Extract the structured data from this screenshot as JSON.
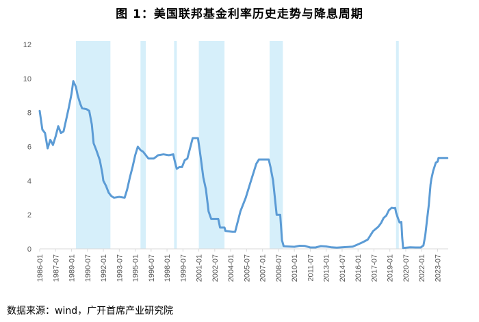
{
  "title": "图 1：美国联邦基金利率历史走势与降息周期",
  "source": "数据来源：wind，广开首席产业研究院",
  "colors": {
    "line": "#5b9bd5",
    "shade": "#d6effa",
    "axis": "#d9d9d9",
    "text": "#595959"
  },
  "chart_data": {
    "type": "line",
    "title": "图 1：美国联邦基金利率历史走势与降息周期",
    "xlabel": "",
    "ylabel": "",
    "ylim": [
      0,
      12
    ],
    "yticks": [
      0,
      2,
      4,
      6,
      8,
      10,
      12
    ],
    "xticks": [
      "1986-01",
      "1987-07",
      "1989-01",
      "1990-07",
      "1992-01",
      "1993-07",
      "1995-01",
      "1996-07",
      "1998-01",
      "1999-07",
      "2001-01",
      "2002-07",
      "2004-01",
      "2005-07",
      "2007-01",
      "2008-07",
      "2010-01",
      "2011-07",
      "2013-01",
      "2014-07",
      "2016-01",
      "2017-07",
      "2019-01",
      "2020-07",
      "2022-01",
      "2023-07"
    ],
    "grid": false,
    "legend": "none",
    "shaded_periods": [
      [
        "1989-06",
        "1992-09"
      ],
      [
        "1995-07",
        "1996-01"
      ],
      [
        "1998-09",
        "1998-11"
      ],
      [
        "2001-01",
        "2003-06"
      ],
      [
        "2007-09",
        "2008-12"
      ],
      [
        "2019-08",
        "2019-10"
      ]
    ],
    "series": [
      {
        "points": [
          [
            "1986-01",
            8.1
          ],
          [
            "1986-04",
            7.0
          ],
          [
            "1986-07",
            6.8
          ],
          [
            "1986-10",
            5.9
          ],
          [
            "1987-01",
            6.4
          ],
          [
            "1987-04",
            6.1
          ],
          [
            "1987-07",
            6.6
          ],
          [
            "1987-10",
            7.2
          ],
          [
            "1988-01",
            6.8
          ],
          [
            "1988-04",
            6.9
          ],
          [
            "1988-07",
            7.6
          ],
          [
            "1988-10",
            8.3
          ],
          [
            "1989-01",
            9.1
          ],
          [
            "1989-03",
            9.85
          ],
          [
            "1989-06",
            9.5
          ],
          [
            "1989-08",
            9.0
          ],
          [
            "1989-11",
            8.5
          ],
          [
            "1990-01",
            8.25
          ],
          [
            "1990-06",
            8.2
          ],
          [
            "1990-09",
            8.1
          ],
          [
            "1990-12",
            7.3
          ],
          [
            "1991-02",
            6.2
          ],
          [
            "1991-05",
            5.8
          ],
          [
            "1991-09",
            5.2
          ],
          [
            "1991-12",
            4.4
          ],
          [
            "1992-01",
            4.0
          ],
          [
            "1992-04",
            3.7
          ],
          [
            "1992-07",
            3.3
          ],
          [
            "1992-10",
            3.1
          ],
          [
            "1993-01",
            3.0
          ],
          [
            "1993-07",
            3.05
          ],
          [
            "1994-01",
            3.0
          ],
          [
            "1994-04",
            3.5
          ],
          [
            "1994-07",
            4.2
          ],
          [
            "1994-10",
            4.8
          ],
          [
            "1995-01",
            5.5
          ],
          [
            "1995-04",
            6.0
          ],
          [
            "1995-07",
            5.8
          ],
          [
            "1995-10",
            5.7
          ],
          [
            "1996-01",
            5.5
          ],
          [
            "1996-04",
            5.3
          ],
          [
            "1996-10",
            5.3
          ],
          [
            "1997-03",
            5.5
          ],
          [
            "1997-09",
            5.55
          ],
          [
            "1998-03",
            5.5
          ],
          [
            "1998-08",
            5.55
          ],
          [
            "1998-10",
            5.1
          ],
          [
            "1998-12",
            4.7
          ],
          [
            "1999-03",
            4.8
          ],
          [
            "1999-06",
            4.8
          ],
          [
            "1999-09",
            5.2
          ],
          [
            "1999-12",
            5.3
          ],
          [
            "2000-03",
            5.9
          ],
          [
            "2000-06",
            6.5
          ],
          [
            "2000-12",
            6.5
          ],
          [
            "2001-03",
            5.4
          ],
          [
            "2001-06",
            4.2
          ],
          [
            "2001-09",
            3.5
          ],
          [
            "2001-12",
            2.2
          ],
          [
            "2002-03",
            1.75
          ],
          [
            "2002-11",
            1.75
          ],
          [
            "2003-01",
            1.25
          ],
          [
            "2003-06",
            1.25
          ],
          [
            "2003-07",
            1.05
          ],
          [
            "2004-03",
            1.0
          ],
          [
            "2004-06",
            1.0
          ],
          [
            "2004-09",
            1.6
          ],
          [
            "2004-12",
            2.2
          ],
          [
            "2005-06",
            3.0
          ],
          [
            "2005-12",
            4.0
          ],
          [
            "2006-06",
            5.0
          ],
          [
            "2006-09",
            5.25
          ],
          [
            "2007-08",
            5.25
          ],
          [
            "2007-10",
            4.8
          ],
          [
            "2008-01",
            4.0
          ],
          [
            "2008-03",
            3.0
          ],
          [
            "2008-05",
            2.0
          ],
          [
            "2008-09",
            2.0
          ],
          [
            "2008-11",
            0.5
          ],
          [
            "2009-01",
            0.15
          ],
          [
            "2010-01",
            0.12
          ],
          [
            "2010-07",
            0.18
          ],
          [
            "2011-01",
            0.17
          ],
          [
            "2011-07",
            0.08
          ],
          [
            "2012-01",
            0.08
          ],
          [
            "2012-07",
            0.16
          ],
          [
            "2013-01",
            0.14
          ],
          [
            "2013-07",
            0.09
          ],
          [
            "2014-01",
            0.07
          ],
          [
            "2014-07",
            0.09
          ],
          [
            "2015-01",
            0.11
          ],
          [
            "2015-07",
            0.13
          ],
          [
            "2015-12",
            0.24
          ],
          [
            "2016-06",
            0.38
          ],
          [
            "2016-12",
            0.54
          ],
          [
            "2017-03",
            0.79
          ],
          [
            "2017-06",
            1.04
          ],
          [
            "2017-12",
            1.3
          ],
          [
            "2018-03",
            1.51
          ],
          [
            "2018-06",
            1.82
          ],
          [
            "2018-09",
            1.95
          ],
          [
            "2018-12",
            2.27
          ],
          [
            "2019-03",
            2.41
          ],
          [
            "2019-06",
            2.38
          ],
          [
            "2019-07",
            2.4
          ],
          [
            "2019-08",
            2.13
          ],
          [
            "2019-10",
            1.83
          ],
          [
            "2019-12",
            1.55
          ],
          [
            "2020-02",
            1.58
          ],
          [
            "2020-03",
            0.65
          ],
          [
            "2020-04",
            0.05
          ],
          [
            "2020-12",
            0.09
          ],
          [
            "2021-06",
            0.08
          ],
          [
            "2021-12",
            0.08
          ],
          [
            "2022-03",
            0.2
          ],
          [
            "2022-05",
            0.77
          ],
          [
            "2022-07",
            1.68
          ],
          [
            "2022-09",
            2.56
          ],
          [
            "2022-11",
            3.78
          ],
          [
            "2022-12",
            4.1
          ],
          [
            "2023-02",
            4.57
          ],
          [
            "2023-05",
            5.06
          ],
          [
            "2023-07",
            5.12
          ],
          [
            "2023-08",
            5.33
          ],
          [
            "2024-06",
            5.33
          ]
        ]
      }
    ]
  }
}
